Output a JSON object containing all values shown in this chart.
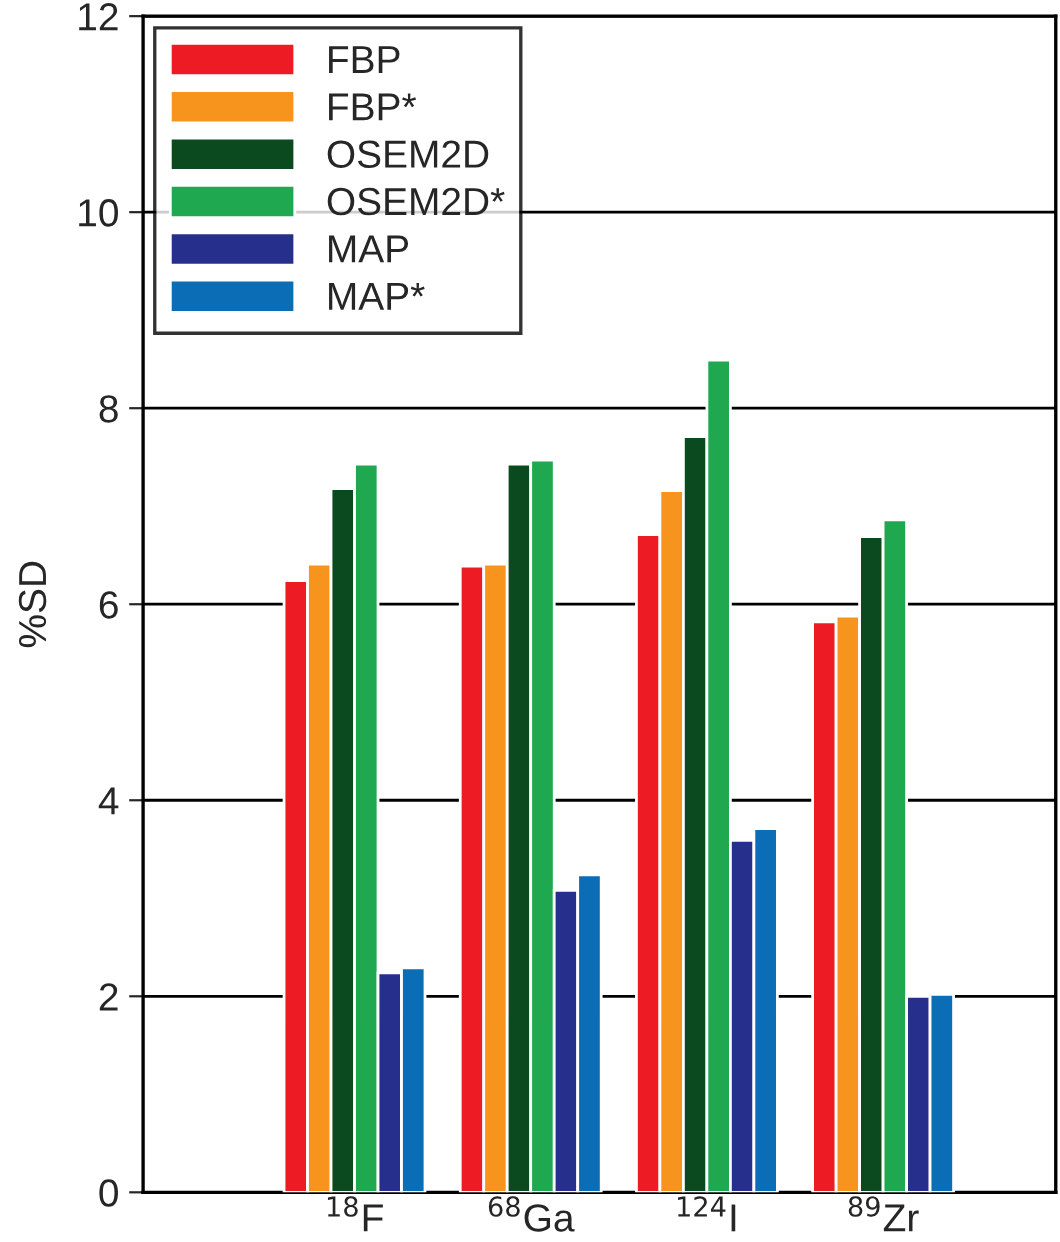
{
  "chart_data": {
    "type": "bar",
    "ylabel": "%SD",
    "categories": [
      "$^{18}$F",
      "$^{68}$Ga",
      "$^{124}$I",
      "$^{89}$Zr"
    ],
    "series": [
      {
        "name": "FBP",
        "color": "#ed1c24",
        "values": [
          6.24,
          6.39,
          6.71,
          5.82
        ]
      },
      {
        "name": "FBP*",
        "color": "#f7941d",
        "values": [
          6.41,
          6.41,
          7.16,
          5.88
        ]
      },
      {
        "name": "OSEM2D",
        "color": "#0a4a1e",
        "values": [
          7.18,
          7.43,
          7.71,
          6.69
        ]
      },
      {
        "name": "OSEM2D*",
        "color": "#1fa84f",
        "values": [
          7.43,
          7.47,
          8.49,
          6.86
        ]
      },
      {
        "name": "MAP",
        "color": "#262f8c",
        "values": [
          2.24,
          3.08,
          3.59,
          2.0
        ]
      },
      {
        "name": "MAP*",
        "color": "#0b6db5",
        "values": [
          2.29,
          3.24,
          3.71,
          2.02
        ]
      }
    ],
    "ylim": [
      0,
      12
    ],
    "yticks": [
      0,
      2,
      4,
      6,
      8,
      10,
      12
    ],
    "grid": "y",
    "legend": "top left"
  }
}
